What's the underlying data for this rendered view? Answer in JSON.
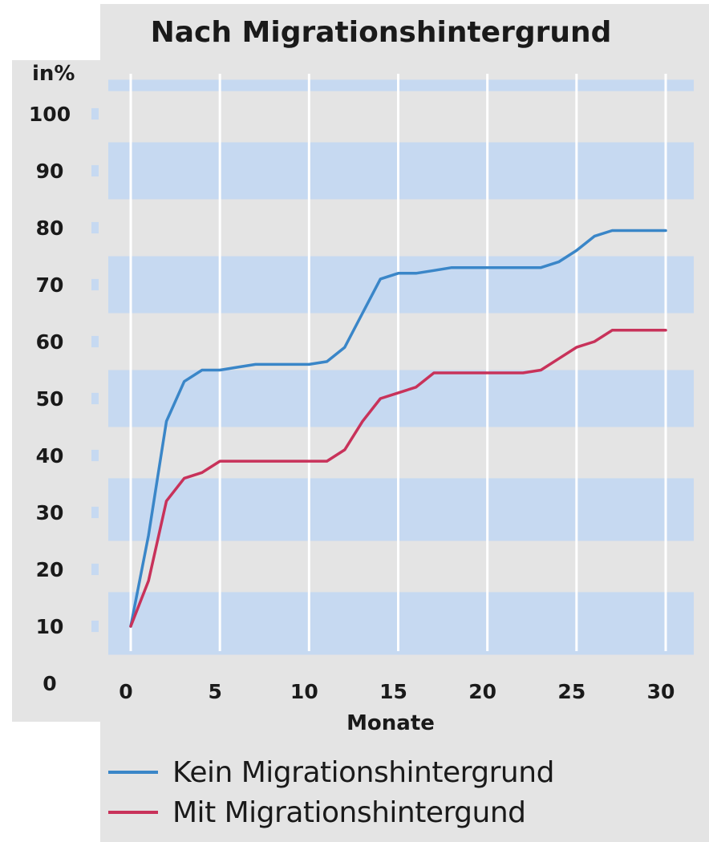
{
  "chart_data": {
    "type": "line",
    "title": "Nach Migrationshintergrund",
    "ylabel": "in%",
    "xlabel": "Monate",
    "xlim": [
      0,
      30
    ],
    "ylim": [
      0,
      100
    ],
    "x_ticks": [
      0,
      5,
      10,
      15,
      20,
      25,
      30
    ],
    "y_ticks": [
      0,
      10,
      20,
      30,
      40,
      50,
      60,
      70,
      80,
      90,
      100
    ],
    "grid": "horizontal bands",
    "band_color": "#c6d9f1",
    "legend_position": "bottom",
    "series": [
      {
        "name": "Kein Migrationshintergrund",
        "color": "#3a86c8",
        "x": [
          0,
          1,
          2,
          3,
          4,
          5,
          6,
          7,
          8,
          9,
          10,
          11,
          12,
          13,
          14,
          15,
          16,
          17,
          18,
          19,
          20,
          21,
          22,
          23,
          24,
          25,
          26,
          27,
          28,
          29,
          30
        ],
        "values": [
          10,
          26,
          46,
          53,
          55,
          55,
          55.5,
          56,
          56,
          56,
          56,
          56.5,
          59,
          65,
          71,
          72,
          72,
          72.5,
          73,
          73,
          73,
          73,
          73,
          73,
          74,
          76,
          78.5,
          79.5,
          79.5,
          79.5,
          79.5
        ]
      },
      {
        "name": "Mit Migrationshintergund",
        "color": "#c8325a",
        "x": [
          0,
          1,
          2,
          3,
          4,
          5,
          6,
          7,
          8,
          9,
          10,
          11,
          12,
          13,
          14,
          15,
          16,
          17,
          18,
          19,
          20,
          21,
          22,
          23,
          24,
          25,
          26,
          27,
          28,
          29,
          30
        ],
        "values": [
          10,
          18,
          32,
          36,
          37,
          39,
          39,
          39,
          39,
          39,
          39,
          39,
          41,
          46,
          50,
          51,
          52,
          54.5,
          54.5,
          54.5,
          54.5,
          54.5,
          54.5,
          55,
          57,
          59,
          60,
          62,
          62,
          62,
          62
        ]
      }
    ]
  }
}
